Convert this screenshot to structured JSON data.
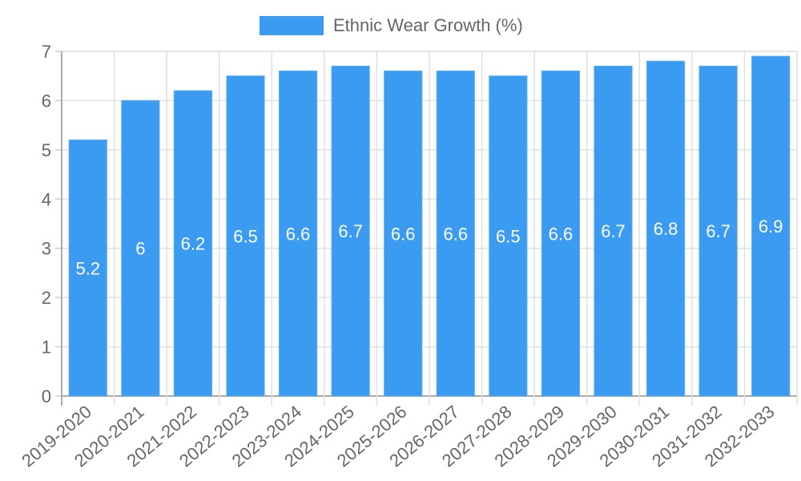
{
  "legend": {
    "label": "Ethnic Wear Growth (%)",
    "color": "#3a9bf0"
  },
  "chart_data": {
    "type": "bar",
    "title": "",
    "xlabel": "",
    "ylabel": "",
    "categories": [
      "2019-2020",
      "2020-2021",
      "2021-2022",
      "2022-2023",
      "2023-2024",
      "2024-2025",
      "2025-2026",
      "2026-2027",
      "2027-2028",
      "2028-2029",
      "2029-2030",
      "2030-2031",
      "2031-2032",
      "2032-2033"
    ],
    "series": [
      {
        "name": "Ethnic Wear Growth (%)",
        "color": "#3a9bf0",
        "values": [
          5.2,
          6,
          6.2,
          6.5,
          6.6,
          6.7,
          6.6,
          6.6,
          6.5,
          6.6,
          6.7,
          6.8,
          6.7,
          6.9
        ]
      }
    ],
    "ylim": [
      0,
      7
    ],
    "yticks": [
      0,
      1,
      2,
      3,
      4,
      5,
      6,
      7
    ],
    "grid": true,
    "legend_position": "top",
    "data_labels": true
  }
}
